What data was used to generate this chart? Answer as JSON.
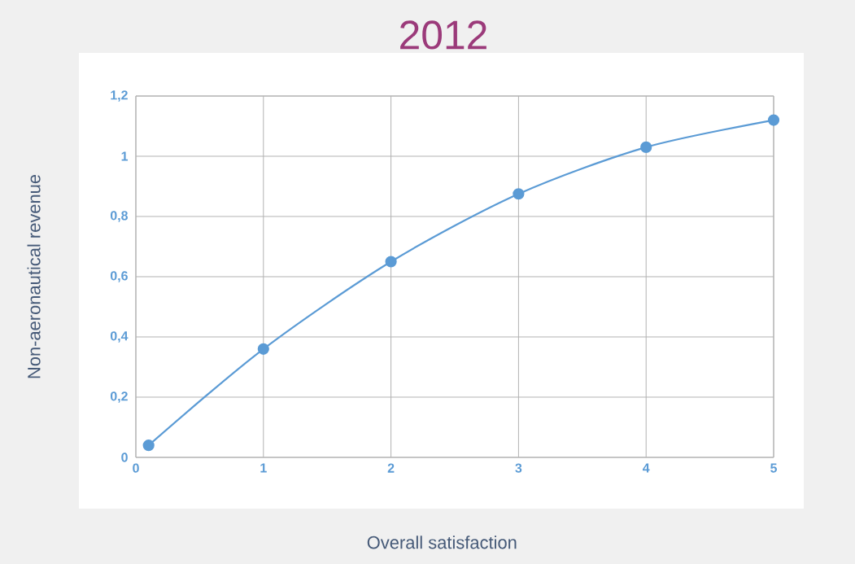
{
  "chart_data": {
    "type": "line",
    "title": "2012",
    "xlabel": "Overall satisfaction",
    "ylabel": "Non-aeronautical revenue",
    "x": [
      0.1,
      1,
      2,
      3,
      4,
      5
    ],
    "values": [
      0.04,
      0.36,
      0.65,
      0.875,
      1.03,
      1.12
    ],
    "color": "#5b9bd5",
    "xlim": [
      0,
      5
    ],
    "ylim": [
      0,
      1.2
    ],
    "xticks": [
      0,
      1,
      2,
      3,
      4,
      5
    ],
    "yticks": [
      0,
      {
        "value": 0.2,
        "label": "0,2"
      },
      {
        "value": 0.4,
        "label": "0,4"
      },
      {
        "value": 0.6,
        "label": "0,6"
      },
      {
        "value": 0.8,
        "label": "0,8"
      },
      1,
      {
        "value": 1.2,
        "label": "1,2"
      }
    ],
    "grid": true,
    "marker": "circle"
  }
}
